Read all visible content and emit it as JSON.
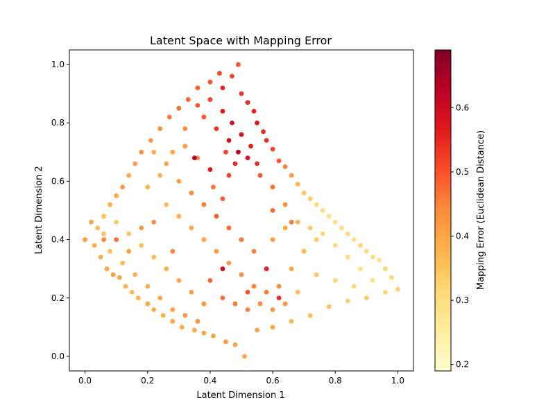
{
  "chart_data": {
    "type": "scatter",
    "title": "Latent Space with Mapping Error",
    "xlabel": "Latent Dimension 1",
    "ylabel": "Latent Dimension 2",
    "xlim": [
      -0.05,
      1.05
    ],
    "ylim": [
      -0.05,
      1.05
    ],
    "xticks": [
      0.0,
      0.2,
      0.4,
      0.6,
      0.8,
      1.0
    ],
    "yticks": [
      0.0,
      0.2,
      0.4,
      0.6,
      0.8,
      1.0
    ],
    "xtick_labels": [
      "0.0",
      "0.2",
      "0.4",
      "0.6",
      "0.8",
      "1.0"
    ],
    "ytick_labels": [
      "0.0",
      "0.2",
      "0.4",
      "0.6",
      "0.8",
      "1.0"
    ],
    "grid": false,
    "colormap": "YlOrRd",
    "colorbar": {
      "label": "Mapping Error (Euclidean Distance)",
      "range": [
        0.19,
        0.69
      ],
      "ticks": [
        0.2,
        0.3,
        0.4,
        0.5,
        0.6
      ],
      "tick_labels": [
        "0.2",
        "0.3",
        "0.4",
        "0.5",
        "0.6"
      ]
    },
    "series": [
      {
        "points": [
          [
            0.0,
            0.4,
            0.42
          ],
          [
            0.02,
            0.46,
            0.4
          ],
          [
            0.03,
            0.38,
            0.38
          ],
          [
            0.04,
            0.44,
            0.37
          ],
          [
            0.05,
            0.34,
            0.39
          ],
          [
            0.06,
            0.48,
            0.36
          ],
          [
            0.07,
            0.3,
            0.4
          ],
          [
            0.08,
            0.52,
            0.38
          ],
          [
            0.09,
            0.28,
            0.41
          ],
          [
            0.1,
            0.55,
            0.39
          ],
          [
            0.11,
            0.27,
            0.4
          ],
          [
            0.12,
            0.58,
            0.42
          ],
          [
            0.13,
            0.24,
            0.38
          ],
          [
            0.14,
            0.62,
            0.4
          ],
          [
            0.15,
            0.22,
            0.37
          ],
          [
            0.16,
            0.66,
            0.41
          ],
          [
            0.17,
            0.2,
            0.38
          ],
          [
            0.18,
            0.7,
            0.43
          ],
          [
            0.2,
            0.18,
            0.4
          ],
          [
            0.21,
            0.74,
            0.42
          ],
          [
            0.22,
            0.16,
            0.39
          ],
          [
            0.24,
            0.78,
            0.44
          ],
          [
            0.25,
            0.14,
            0.38
          ],
          [
            0.27,
            0.82,
            0.46
          ],
          [
            0.28,
            0.12,
            0.4
          ],
          [
            0.3,
            0.85,
            0.47
          ],
          [
            0.31,
            0.1,
            0.39
          ],
          [
            0.33,
            0.88,
            0.48
          ],
          [
            0.35,
            0.09,
            0.4
          ],
          [
            0.36,
            0.92,
            0.49
          ],
          [
            0.38,
            0.08,
            0.41
          ],
          [
            0.4,
            0.94,
            0.5
          ],
          [
            0.41,
            0.07,
            0.4
          ],
          [
            0.43,
            0.97,
            0.51
          ],
          [
            0.45,
            0.05,
            0.42
          ],
          [
            0.47,
            0.96,
            0.52
          ],
          [
            0.48,
            0.04,
            0.41
          ],
          [
            0.49,
            1.0,
            0.5
          ],
          [
            0.51,
            0.0,
            0.4
          ],
          [
            0.5,
            0.9,
            0.53
          ],
          [
            0.52,
            0.87,
            0.55
          ],
          [
            0.54,
            0.84,
            0.56
          ],
          [
            0.55,
            0.8,
            0.57
          ],
          [
            0.57,
            0.77,
            0.55
          ],
          [
            0.58,
            0.74,
            0.54
          ],
          [
            0.6,
            0.71,
            0.52
          ],
          [
            0.62,
            0.67,
            0.5
          ],
          [
            0.64,
            0.65,
            0.45
          ],
          [
            0.66,
            0.62,
            0.42
          ],
          [
            0.68,
            0.59,
            0.38
          ],
          [
            0.7,
            0.56,
            0.35
          ],
          [
            0.72,
            0.54,
            0.33
          ],
          [
            0.74,
            0.52,
            0.31
          ],
          [
            0.76,
            0.5,
            0.3
          ],
          [
            0.78,
            0.48,
            0.29
          ],
          [
            0.8,
            0.46,
            0.3
          ],
          [
            0.82,
            0.44,
            0.29
          ],
          [
            0.84,
            0.42,
            0.31
          ],
          [
            0.86,
            0.4,
            0.3
          ],
          [
            0.88,
            0.38,
            0.32
          ],
          [
            0.9,
            0.36,
            0.31
          ],
          [
            0.92,
            0.34,
            0.3
          ],
          [
            0.94,
            0.33,
            0.29
          ],
          [
            0.96,
            0.3,
            0.32
          ],
          [
            0.98,
            0.27,
            0.31
          ],
          [
            1.0,
            0.23,
            0.33
          ],
          [
            0.96,
            0.22,
            0.32
          ],
          [
            0.9,
            0.2,
            0.34
          ],
          [
            0.84,
            0.19,
            0.33
          ],
          [
            0.78,
            0.17,
            0.35
          ],
          [
            0.72,
            0.14,
            0.36
          ],
          [
            0.66,
            0.12,
            0.38
          ],
          [
            0.6,
            0.1,
            0.4
          ],
          [
            0.55,
            0.09,
            0.41
          ],
          [
            0.41,
            0.58,
            0.47
          ],
          [
            0.45,
            0.7,
            0.52
          ],
          [
            0.42,
            0.78,
            0.54
          ],
          [
            0.38,
            0.82,
            0.5
          ],
          [
            0.36,
            0.68,
            0.44
          ],
          [
            0.32,
            0.72,
            0.42
          ],
          [
            0.28,
            0.7,
            0.4
          ],
          [
            0.24,
            0.62,
            0.38
          ],
          [
            0.2,
            0.58,
            0.37
          ],
          [
            0.26,
            0.52,
            0.36
          ],
          [
            0.3,
            0.48,
            0.38
          ],
          [
            0.34,
            0.44,
            0.39
          ],
          [
            0.38,
            0.4,
            0.41
          ],
          [
            0.42,
            0.36,
            0.42
          ],
          [
            0.46,
            0.32,
            0.43
          ],
          [
            0.5,
            0.28,
            0.44
          ],
          [
            0.54,
            0.24,
            0.45
          ],
          [
            0.58,
            0.22,
            0.46
          ],
          [
            0.62,
            0.24,
            0.44
          ],
          [
            0.66,
            0.3,
            0.4
          ],
          [
            0.7,
            0.36,
            0.37
          ],
          [
            0.74,
            0.4,
            0.34
          ],
          [
            0.44,
            0.84,
            0.57
          ],
          [
            0.47,
            0.8,
            0.59
          ],
          [
            0.5,
            0.76,
            0.58
          ],
          [
            0.53,
            0.72,
            0.56
          ],
          [
            0.48,
            0.66,
            0.55
          ],
          [
            0.46,
            0.62,
            0.52
          ],
          [
            0.44,
            0.54,
            0.49
          ],
          [
            0.56,
            0.62,
            0.5
          ],
          [
            0.6,
            0.58,
            0.47
          ],
          [
            0.64,
            0.52,
            0.43
          ],
          [
            0.4,
            0.26,
            0.48
          ],
          [
            0.44,
            0.2,
            0.47
          ],
          [
            0.48,
            0.18,
            0.46
          ],
          [
            0.52,
            0.16,
            0.45
          ],
          [
            0.56,
            0.18,
            0.44
          ],
          [
            0.6,
            0.16,
            0.43
          ],
          [
            0.64,
            0.18,
            0.42
          ],
          [
            0.38,
            0.18,
            0.43
          ],
          [
            0.34,
            0.22,
            0.41
          ],
          [
            0.3,
            0.26,
            0.4
          ],
          [
            0.26,
            0.3,
            0.38
          ],
          [
            0.22,
            0.34,
            0.37
          ],
          [
            0.18,
            0.38,
            0.36
          ],
          [
            0.14,
            0.42,
            0.35
          ],
          [
            0.1,
            0.46,
            0.34
          ],
          [
            0.06,
            0.42,
            0.35
          ],
          [
            0.08,
            0.36,
            0.36
          ],
          [
            0.12,
            0.32,
            0.37
          ],
          [
            0.16,
            0.28,
            0.38
          ],
          [
            0.2,
            0.24,
            0.39
          ],
          [
            0.24,
            0.2,
            0.4
          ],
          [
            0.28,
            0.16,
            0.41
          ],
          [
            0.32,
            0.14,
            0.42
          ],
          [
            0.36,
            0.12,
            0.43
          ],
          [
            0.6,
            0.4,
            0.42
          ],
          [
            0.64,
            0.44,
            0.4
          ],
          [
            0.68,
            0.46,
            0.37
          ],
          [
            0.72,
            0.44,
            0.34
          ],
          [
            0.76,
            0.42,
            0.32
          ],
          [
            0.8,
            0.38,
            0.31
          ],
          [
            0.84,
            0.34,
            0.3
          ],
          [
            0.88,
            0.3,
            0.29
          ],
          [
            0.92,
            0.26,
            0.3
          ],
          [
            0.86,
            0.24,
            0.31
          ],
          [
            0.8,
            0.26,
            0.32
          ],
          [
            0.74,
            0.28,
            0.34
          ],
          [
            0.68,
            0.22,
            0.36
          ],
          [
            0.54,
            0.36,
            0.46
          ],
          [
            0.5,
            0.4,
            0.47
          ],
          [
            0.46,
            0.44,
            0.48
          ],
          [
            0.42,
            0.48,
            0.49
          ],
          [
            0.38,
            0.52,
            0.46
          ],
          [
            0.34,
            0.56,
            0.44
          ],
          [
            0.3,
            0.6,
            0.42
          ],
          [
            0.26,
            0.66,
            0.4
          ],
          [
            0.22,
            0.7,
            0.39
          ],
          [
            0.32,
            0.78,
            0.44
          ],
          [
            0.36,
            0.86,
            0.49
          ],
          [
            0.4,
            0.88,
            0.52
          ],
          [
            0.44,
            0.92,
            0.55
          ],
          [
            0.46,
            0.74,
            0.6
          ],
          [
            0.49,
            0.7,
            0.62
          ],
          [
            0.52,
            0.68,
            0.58
          ],
          [
            0.55,
            0.66,
            0.54
          ],
          [
            0.35,
            0.68,
            0.62
          ],
          [
            0.4,
            0.64,
            0.57
          ],
          [
            0.44,
            0.3,
            0.6
          ],
          [
            0.58,
            0.3,
            0.56
          ],
          [
            0.62,
            0.2,
            0.55
          ],
          [
            0.52,
            0.22,
            0.5
          ],
          [
            0.66,
            0.46,
            0.46
          ],
          [
            0.6,
            0.5,
            0.48
          ],
          [
            0.06,
            0.4,
            0.45
          ],
          [
            0.1,
            0.4,
            0.47
          ],
          [
            0.14,
            0.36,
            0.42
          ],
          [
            0.18,
            0.44,
            0.43
          ],
          [
            0.22,
            0.46,
            0.44
          ],
          [
            0.28,
            0.36,
            0.45
          ]
        ]
      }
    ]
  }
}
